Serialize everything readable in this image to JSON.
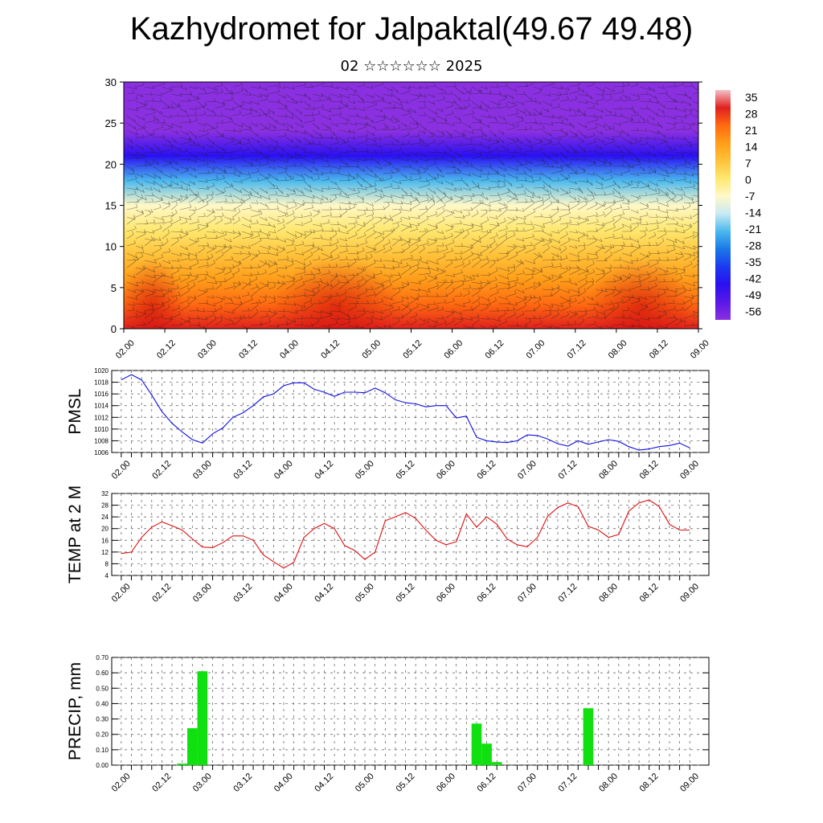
{
  "header": {
    "title": "Kazhydromet for Jalpaktal(49.67 49.48)",
    "subtitle": "02 ☆☆☆☆☆☆ 2025"
  },
  "x_ticks": [
    "02.00",
    "02.12",
    "03.00",
    "03.12",
    "04.00",
    "04.12",
    "05.00",
    "05.12",
    "06.00",
    "06.12",
    "07.00",
    "07.12",
    "08.00",
    "08.12",
    "09.00"
  ],
  "colorbar": {
    "labels": [
      "35",
      "28",
      "21",
      "14",
      "7",
      "0",
      "-7",
      "-14",
      "-21",
      "-28",
      "-35",
      "-42",
      "-49",
      "-56"
    ],
    "colors": [
      "#f4c0c8",
      "#e0201e",
      "#ff6a10",
      "#ff9e1a",
      "#ffc23a",
      "#ffe870",
      "#fff8c8",
      "#c8eaf4",
      "#4ab8ee",
      "#1a78e8",
      "#1a3af0",
      "#2a10f0",
      "#5a18e8",
      "#8a30e0"
    ]
  },
  "chart_data": [
    {
      "type": "heatmap",
      "title": "",
      "xlabel": "",
      "ylabel": "",
      "ylim": [
        0,
        30
      ],
      "y_ticks": [
        "0",
        "5",
        "10",
        "15",
        "20",
        "25",
        "30"
      ],
      "x_range_days": [
        "02.00",
        "09.00"
      ],
      "overlay": "wind barbs",
      "colorbar_range": [
        -56,
        35
      ],
      "levels": [
        0,
        3,
        6,
        9,
        12,
        15,
        18,
        21,
        24,
        27,
        30
      ],
      "temperature_by_level": [
        25,
        18,
        12,
        7,
        2,
        -6,
        -20,
        -38,
        -54,
        -58,
        -50
      ]
    },
    {
      "type": "line",
      "ylabel": "PMSL",
      "ylim": [
        1006,
        1020
      ],
      "y_ticks": [
        "1006",
        "1008",
        "1010",
        "1012",
        "1014",
        "1016",
        "1018",
        "1020"
      ],
      "color": "#1010e0",
      "grid": true,
      "x": [
        "02.00",
        "02.03",
        "02.06",
        "02.09",
        "02.12",
        "02.15",
        "02.18",
        "02.21",
        "03.00",
        "03.03",
        "03.06",
        "03.09",
        "03.12",
        "03.15",
        "03.18",
        "03.21",
        "04.00",
        "04.03",
        "04.06",
        "04.09",
        "04.12",
        "04.15",
        "04.18",
        "04.21",
        "05.00",
        "05.03",
        "05.06",
        "05.09",
        "05.12",
        "05.15",
        "05.18",
        "05.21",
        "06.00",
        "06.03",
        "06.06",
        "06.09",
        "06.12",
        "06.15",
        "06.18",
        "06.21",
        "07.00",
        "07.03",
        "07.06",
        "07.09",
        "07.12",
        "07.15",
        "07.18",
        "07.21",
        "08.00",
        "08.03",
        "08.06",
        "08.09",
        "08.12",
        "08.15",
        "08.18",
        "08.21",
        "09.00"
      ],
      "values": [
        1018.4,
        1019.3,
        1018.4,
        1015.8,
        1013.0,
        1011.0,
        1009.5,
        1008.2,
        1007.6,
        1009.2,
        1010.2,
        1012.0,
        1012.8,
        1014.0,
        1015.5,
        1016.0,
        1017.4,
        1017.9,
        1017.9,
        1016.8,
        1016.3,
        1015.6,
        1016.3,
        1016.3,
        1016.2,
        1017.0,
        1016.2,
        1015.0,
        1014.5,
        1014.3,
        1013.8,
        1014.0,
        1014.0,
        1011.9,
        1012.2,
        1008.6,
        1008.0,
        1007.8,
        1007.7,
        1008.0,
        1009.0,
        1008.9,
        1008.3,
        1007.5,
        1007.1,
        1008.0,
        1007.4,
        1007.8,
        1008.2,
        1007.9,
        1007.0,
        1006.4,
        1006.6,
        1007.0,
        1007.2,
        1007.6,
        1006.8
      ]
    },
    {
      "type": "line",
      "ylabel": "TEMP at 2 M",
      "ylim": [
        4,
        32
      ],
      "y_ticks": [
        "4",
        "8",
        "12",
        "16",
        "20",
        "24",
        "28",
        "32"
      ],
      "color": "#e01010",
      "grid": true,
      "x": [
        "02.00",
        "02.03",
        "02.06",
        "02.09",
        "02.12",
        "02.15",
        "02.18",
        "02.21",
        "03.00",
        "03.03",
        "03.06",
        "03.09",
        "03.12",
        "03.15",
        "03.18",
        "03.21",
        "04.00",
        "04.03",
        "04.06",
        "04.09",
        "04.12",
        "04.15",
        "04.18",
        "04.21",
        "05.00",
        "05.03",
        "05.06",
        "05.09",
        "05.12",
        "05.15",
        "05.18",
        "05.21",
        "06.00",
        "06.03",
        "06.06",
        "06.09",
        "06.12",
        "06.15",
        "06.18",
        "06.21",
        "07.00",
        "07.03",
        "07.06",
        "07.09",
        "07.12",
        "07.15",
        "07.18",
        "07.21",
        "08.00",
        "08.03",
        "08.06",
        "08.09",
        "08.12",
        "08.15",
        "08.18",
        "08.21",
        "09.00"
      ],
      "values": [
        11.5,
        12.0,
        17.0,
        20.5,
        22.3,
        21.0,
        19.5,
        16.5,
        13.7,
        13.5,
        15.2,
        17.5,
        17.5,
        16.0,
        11.0,
        8.7,
        6.5,
        8.5,
        17.0,
        20.0,
        21.8,
        20.0,
        14.2,
        12.5,
        9.5,
        12.0,
        22.7,
        24.0,
        25.5,
        23.5,
        19.5,
        16.0,
        14.5,
        15.5,
        25.0,
        20.5,
        24.0,
        21.5,
        16.5,
        14.5,
        13.8,
        17.0,
        24.2,
        27.2,
        28.8,
        27.5,
        20.8,
        19.5,
        17.0,
        18.0,
        26.0,
        28.8,
        29.8,
        27.5,
        21.5,
        19.5,
        19.5
      ]
    },
    {
      "type": "bar",
      "ylabel": "PRECIP, mm",
      "ylim": [
        0,
        0.7
      ],
      "y_ticks": [
        "0.00",
        "0.10",
        "0.20",
        "0.30",
        "0.40",
        "0.50",
        "0.60",
        "0.70"
      ],
      "color": "#10e010",
      "grid": true,
      "x": [
        "02.18",
        "02.21",
        "03.00",
        "06.09",
        "06.12",
        "06.15",
        "07.18"
      ],
      "values": [
        0.01,
        0.24,
        0.61,
        0.27,
        0.14,
        0.02,
        0.37
      ]
    }
  ]
}
